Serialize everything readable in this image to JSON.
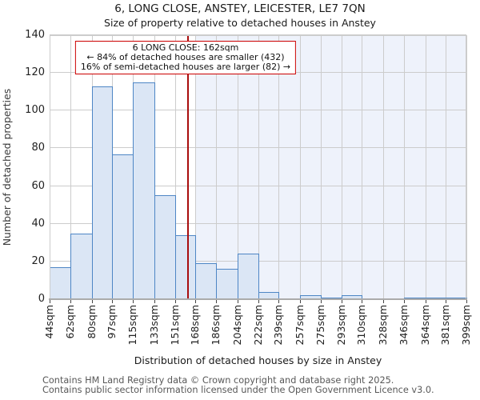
{
  "chart_data": {
    "type": "bar",
    "title": "6, LONG CLOSE, ANSTEY, LEICESTER, LE7 7QN",
    "subtitle": "Size of property relative to detached houses in Anstey",
    "xlabel": "Distribution of detached houses by size in Anstey",
    "ylabel": "Number of detached properties",
    "ylim": [
      0,
      140
    ],
    "yticks": [
      0,
      20,
      40,
      60,
      80,
      100,
      120,
      140
    ],
    "grid": true,
    "bin_edges_sqm": [
      44,
      62,
      80,
      97,
      115,
      133,
      151,
      168,
      186,
      204,
      222,
      239,
      257,
      275,
      293,
      310,
      328,
      346,
      364,
      381,
      399
    ],
    "x_tick_labels": [
      "44sqm",
      "62sqm",
      "80sqm",
      "97sqm",
      "115sqm",
      "133sqm",
      "151sqm",
      "168sqm",
      "186sqm",
      "204sqm",
      "222sqm",
      "239sqm",
      "257sqm",
      "275sqm",
      "293sqm",
      "310sqm",
      "328sqm",
      "346sqm",
      "364sqm",
      "381sqm",
      "399sqm"
    ],
    "values": [
      17,
      35,
      113,
      77,
      115,
      55,
      34,
      19,
      16,
      24,
      4,
      0,
      2,
      1,
      2,
      0,
      0,
      1,
      1,
      1
    ],
    "marker": {
      "value_sqm": 162,
      "label_lines": [
        "6 LONG CLOSE: 162sqm",
        "← 84% of detached houses are smaller (432)",
        "16% of semi-detached houses are larger (82) →"
      ]
    },
    "shaded_region_sqm": [
      168,
      399
    ],
    "colors": {
      "bar_fill": "#dbe6f5",
      "bar_edge": "#4e86c5",
      "marker_line": "#a80d0d",
      "annotation_border": "#cc0000",
      "shading": "#eef2fb",
      "gridline": "#cccccc"
    }
  },
  "footer": {
    "line1": "Contains HM Land Registry data © Crown copyright and database right 2025.",
    "line2": "Contains public sector information licensed under the Open Government Licence v3.0."
  }
}
